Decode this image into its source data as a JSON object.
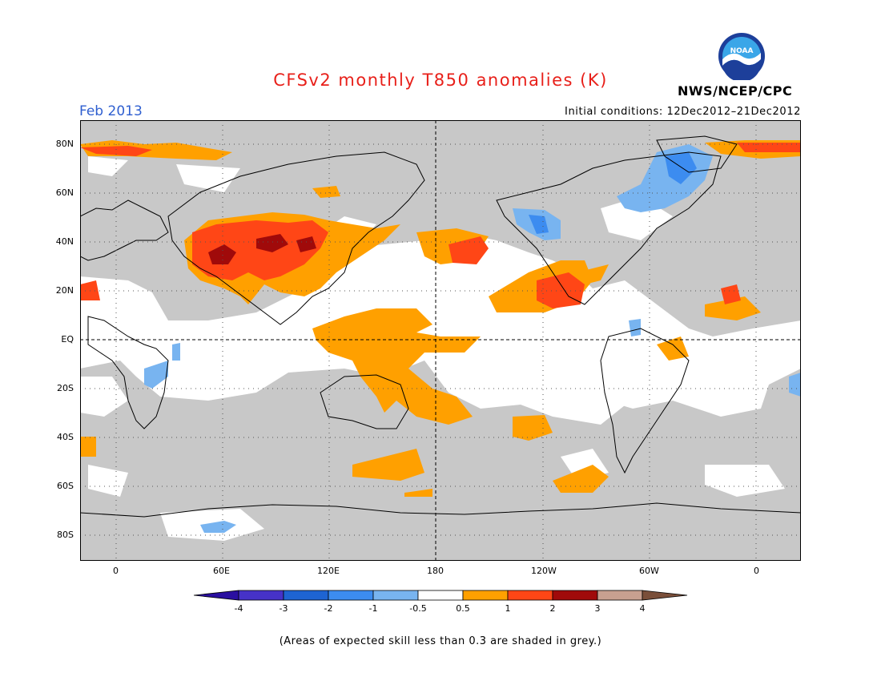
{
  "header": {
    "title": "CFSv2 monthly T850 anomalies (K)",
    "valid_month": "Feb 2013",
    "initial_conditions": "Initial conditions: 12Dec2012–21Dec2012",
    "agency": "NWS/NCEP/CPC",
    "logo_text": "NOAA"
  },
  "map": {
    "lat_labels": [
      "80N",
      "60N",
      "40N",
      "20N",
      "EQ",
      "20S",
      "40S",
      "60S",
      "80S"
    ],
    "lon_labels": [
      "0",
      "60E",
      "120E",
      "180",
      "120W",
      "60W",
      "0"
    ],
    "colors": {
      "skill_grey": "#c8c8c8",
      "ocean_white": "#ffffff",
      "coastline": "#000000",
      "dashed_line": "#000000"
    }
  },
  "colorbar": {
    "labels": [
      "-4",
      "-3",
      "-2",
      "-1",
      "-0.5",
      "0.5",
      "1",
      "2",
      "3",
      "4"
    ],
    "colors": [
      "#2a0fa0",
      "#4632c8",
      "#1e64d2",
      "#3c8cf0",
      "#78b4f0",
      "#ffffff",
      "#ffa000",
      "#ff4616",
      "#a00a0a",
      "#c8a090",
      "#7a4f3a"
    ]
  },
  "footnote": "(Areas of expected skill less than 0.3 are shaded in grey.)"
}
